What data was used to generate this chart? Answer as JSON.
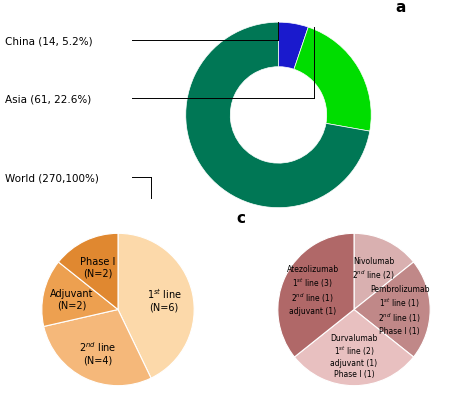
{
  "donut": {
    "labels": [
      "China (14, 5.2%)",
      "Asia (61, 22.6%)",
      "World (270,100%)"
    ],
    "values": [
      5.2,
      22.6,
      72.2
    ],
    "colors": [
      "#1a1acd",
      "#00dd00",
      "#007755"
    ],
    "startangle": 90
  },
  "pie_b": {
    "labels": [
      "1$^{st}$ line\n(N=6)",
      "2$^{nd}$ line\n(N=4)",
      "Adjuvant\n(N=2)",
      "Phase I\n(N=2)"
    ],
    "values": [
      6,
      4,
      2,
      2
    ],
    "colors": [
      "#fcd9aa",
      "#f5b87a",
      "#eda050",
      "#e08830"
    ],
    "startangle": 90
  },
  "pie_c": {
    "labels": [
      "Nivolumab\n2$^{nd}$ line (2)",
      "Pembrolizumab\n1$^{st}$ line (1)\n2$^{nd}$ line (1)\nPhase I (1)",
      "Durvalumab\n1$^{st}$ line (2)\nadjuvant (1)\nPhase I (1)",
      "Atezolizumab\n1$^{st}$ line (3)\n2$^{nd}$ line (1)\nadjuvant (1)"
    ],
    "values": [
      2,
      3,
      4,
      5
    ],
    "colors": [
      "#d9b0b0",
      "#c08888",
      "#e8c0c0",
      "#b06868"
    ],
    "startangle": 90
  },
  "bg_color": "#ffffff",
  "panel_labels_fontsize": 11,
  "annotation_fontsize": 7.5
}
